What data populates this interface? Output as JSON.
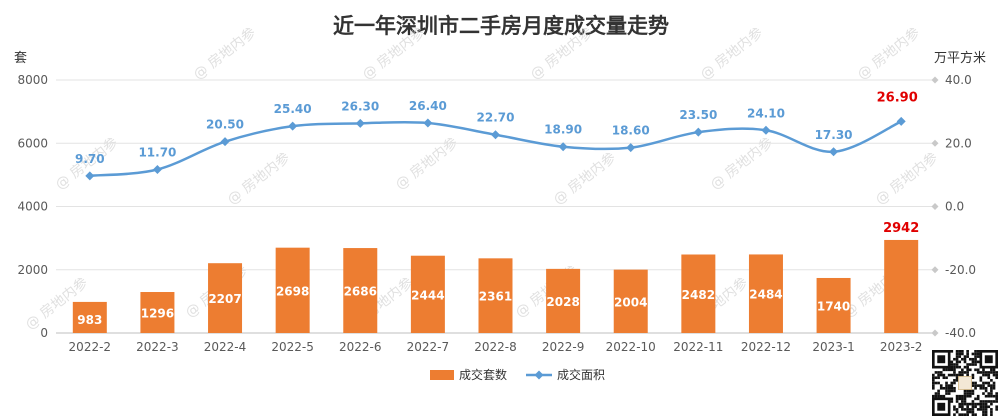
{
  "chart_data": {
    "type": "bar+line",
    "title": "近一年深圳市二手房月度成交量走势",
    "categories": [
      "2022-2",
      "2022-3",
      "2022-4",
      "2022-5",
      "2022-6",
      "2022-7",
      "2022-8",
      "2022-9",
      "2022-10",
      "2022-11",
      "2022-12",
      "2023-1",
      "2023-2"
    ],
    "left_axis": {
      "unit": "套",
      "min": 0,
      "max": 8000,
      "ticks": [
        "0",
        "2000",
        "4000",
        "6000",
        "8000"
      ]
    },
    "right_axis": {
      "unit": "万平方米",
      "min": -40,
      "max": 40,
      "ticks": [
        "-40.0",
        "-20.0",
        "0.0",
        "20.0",
        "40.0"
      ]
    },
    "series": [
      {
        "name": "成交套数",
        "type": "bar",
        "axis": "left",
        "color": "#ed7d31",
        "values": [
          983,
          1296,
          2207,
          2698,
          2686,
          2444,
          2361,
          2028,
          2004,
          2482,
          2484,
          1740,
          2942
        ],
        "labels": [
          "983",
          "1296",
          "2207",
          "2698",
          "2686",
          "2444",
          "2361",
          "2028",
          "2004",
          "2482",
          "2484",
          "1740",
          "2942"
        ]
      },
      {
        "name": "成交面积",
        "type": "line",
        "axis": "right",
        "color": "#5b9bd5",
        "values": [
          9.7,
          11.7,
          20.5,
          25.4,
          26.3,
          26.4,
          22.7,
          18.9,
          18.6,
          23.5,
          24.1,
          17.3,
          26.9
        ],
        "labels": [
          "9.70",
          "11.70",
          "20.50",
          "25.40",
          "26.30",
          "26.40",
          "22.70",
          "18.90",
          "18.60",
          "23.50",
          "24.10",
          "17.30",
          "26.90"
        ]
      }
    ],
    "highlight_color": "#e00000",
    "grid": true,
    "legend_position": "bottom"
  },
  "watermark": "房地内参"
}
